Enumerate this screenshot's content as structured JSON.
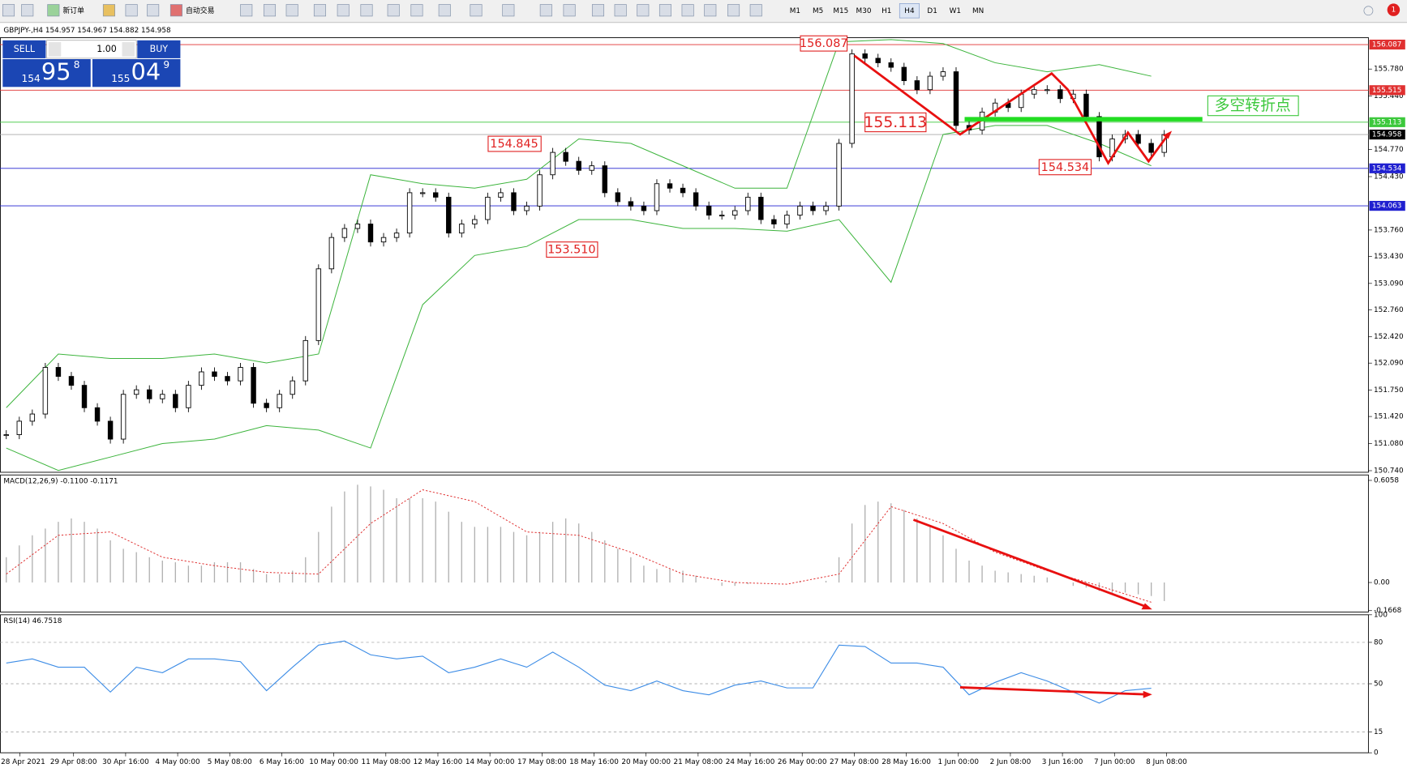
{
  "toolbar": {
    "new_order": "新订单",
    "auto_trading": "自动交易",
    "timeframes": [
      "M1",
      "M5",
      "M15",
      "M30",
      "H1",
      "H4",
      "D1",
      "W1",
      "MN"
    ],
    "badge": "1"
  },
  "main_chart": {
    "title": "GBPJPY-,H4  154.957 154.967 154.882 154.958",
    "ylim": [
      150.72,
      156.174
    ],
    "yticks": [
      {
        "value": 155.78,
        "label": "155.780"
      },
      {
        "value": 155.44,
        "label": "155.440"
      },
      {
        "value": 154.77,
        "label": "154.770"
      },
      {
        "value": 154.43,
        "label": "154.430"
      },
      {
        "value": 153.76,
        "label": "153.760"
      },
      {
        "value": 153.43,
        "label": "153.430"
      },
      {
        "value": 153.09,
        "label": "153.090"
      },
      {
        "value": 152.76,
        "label": "152.760"
      },
      {
        "value": 152.42,
        "label": "152.420"
      },
      {
        "value": 152.09,
        "label": "152.090"
      },
      {
        "value": 151.75,
        "label": "151.750"
      },
      {
        "value": 151.42,
        "label": "151.420"
      },
      {
        "value": 151.08,
        "label": "151.080"
      },
      {
        "value": 150.74,
        "label": "150.740"
      }
    ],
    "levels": [
      {
        "value": 156.087,
        "label": "156.087",
        "color": "#e03030"
      },
      {
        "value": 155.515,
        "label": "155.515",
        "color": "#e03030"
      },
      {
        "value": 155.113,
        "label": "155.113",
        "color": "#3cc83c"
      },
      {
        "value": 154.958,
        "label": "154.958",
        "color": "#000000"
      },
      {
        "value": 154.534,
        "label": "154.534",
        "color": "#2020d0"
      },
      {
        "value": 154.063,
        "label": "154.063",
        "color": "#2020d0"
      }
    ],
    "closes": [
      151.192,
      151.361,
      151.451,
      152.036,
      151.923,
      151.811,
      151.53,
      151.361,
      151.136,
      151.698,
      151.755,
      151.642,
      151.698,
      151.53,
      151.811,
      151.98,
      151.923,
      151.867,
      152.036,
      151.586,
      151.53,
      151.698,
      151.867,
      152.373,
      153.273,
      153.666,
      153.779,
      153.835,
      153.61,
      153.666,
      153.722,
      154.228,
      154.228,
      154.172,
      153.722,
      153.835,
      153.891,
      154.172,
      154.228,
      154.003,
      154.06,
      154.453,
      154.734,
      154.622,
      154.509,
      154.566,
      154.228,
      154.116,
      154.06,
      154.003,
      154.341,
      154.285,
      154.228,
      154.06,
      153.947,
      153.947,
      154.003,
      154.172,
      153.891,
      153.835,
      153.947,
      154.06,
      154.003,
      154.06,
      154.847,
      155.971,
      155.915,
      155.859,
      155.802,
      155.634,
      155.521,
      155.69,
      155.746,
      155.072,
      155.015,
      155.24,
      155.353,
      155.297,
      155.465,
      155.521,
      155.521,
      155.409,
      155.465,
      155.184,
      154.678,
      154.903,
      154.959,
      154.847,
      154.734,
      154.958
    ],
    "band_upper": [
      151.53,
      152.204,
      152.148,
      152.148,
      152.204,
      152.092,
      152.204,
      154.453,
      154.341,
      154.285,
      154.397,
      154.903,
      154.847,
      154.566,
      154.285,
      154.285,
      156.12,
      156.15,
      156.1,
      155.859,
      155.746,
      155.836,
      155.69
    ],
    "band_lower": [
      151.024,
      150.743,
      150.911,
      151.08,
      151.136,
      151.305,
      151.249,
      151.024,
      152.823,
      153.441,
      153.554,
      153.891,
      153.891,
      153.779,
      153.779,
      153.745,
      153.891,
      153.104,
      154.959,
      155.072,
      155.072,
      154.847,
      154.566
    ],
    "annotations": [
      {
        "text": "156.087"
      },
      {
        "text": "155.113"
      },
      {
        "text": "154.845"
      },
      {
        "text": "153.510"
      },
      {
        "text": "154.534"
      },
      {
        "text": "多空转折点"
      }
    ]
  },
  "trade_panel": {
    "sell": "SELL",
    "buy": "BUY",
    "lots": "1.00",
    "bid_big": "154",
    "bid_pips": "95",
    "bid_frac": "8",
    "ask_big": "155",
    "ask_pips": "04",
    "ask_frac": "9"
  },
  "macd": {
    "title": "MACD(12,26,9) -0.1100 -0.1171",
    "ylim": [
      -0.1754,
      0.638
    ],
    "yticks": [
      0.6058,
      {
        "value": 0,
        "label": "0.00"
      },
      -0.1668
    ],
    "histogram": [
      0.15,
      0.22,
      0.28,
      0.32,
      0.36,
      0.38,
      0.36,
      0.32,
      0.25,
      0.2,
      0.18,
      0.15,
      0.13,
      0.12,
      0.1,
      0.1,
      0.12,
      0.12,
      0.12,
      0.08,
      0.05,
      0.05,
      0.07,
      0.15,
      0.3,
      0.45,
      0.54,
      0.58,
      0.57,
      0.55,
      0.5,
      0.5,
      0.5,
      0.48,
      0.42,
      0.36,
      0.33,
      0.33,
      0.33,
      0.3,
      0.28,
      0.3,
      0.36,
      0.38,
      0.35,
      0.3,
      0.25,
      0.2,
      0.15,
      0.1,
      0.08,
      0.08,
      0.07,
      0.04,
      0.0,
      -0.02,
      -0.02,
      -0.01,
      0.0,
      0.0,
      0.0,
      0.01,
      0.0,
      0.01,
      0.15,
      0.35,
      0.46,
      0.48,
      0.47,
      0.43,
      0.38,
      0.33,
      0.28,
      0.2,
      0.13,
      0.1,
      0.07,
      0.06,
      0.05,
      0.04,
      0.03,
      0.0,
      -0.02,
      -0.03,
      -0.05,
      -0.06,
      -0.06,
      -0.07,
      -0.08,
      -0.11
    ],
    "signal": [
      0.05,
      0.28,
      0.3,
      0.15,
      0.1,
      0.06,
      0.05,
      0.35,
      0.55,
      0.48,
      0.3,
      0.28,
      0.18,
      0.05,
      0.0,
      -0.01,
      0.05,
      0.45,
      0.35,
      0.18,
      0.07,
      -0.02,
      -0.117
    ]
  },
  "rsi": {
    "title": "RSI(14) 46.7518",
    "ylim": [
      0,
      100
    ],
    "yticks": [
      100,
      80,
      50,
      15,
      0
    ],
    "grid_levels": [
      80,
      50,
      15
    ],
    "values": [
      65,
      68,
      62,
      62,
      44,
      62,
      58,
      68,
      68,
      66,
      45,
      62,
      78,
      81,
      71,
      68,
      70,
      58,
      62,
      68,
      62,
      73,
      62,
      49,
      45,
      52,
      45,
      42,
      49,
      52,
      47,
      47,
      78,
      77,
      65,
      65,
      62,
      42,
      51,
      58,
      52,
      44,
      36,
      45,
      46.75
    ]
  },
  "time_labels": [
    "28 Apr 2021",
    "29 Apr 08:00",
    "30 Apr 16:00",
    "4 May 00:00",
    "5 May 08:00",
    "6 May 16:00",
    "10 May 00:00",
    "11 May 08:00",
    "12 May 16:00",
    "14 May 00:00",
    "17 May 08:00",
    "18 May 16:00",
    "20 May 00:00",
    "21 May 08:00",
    "24 May 16:00",
    "26 May 00:00",
    "27 May 08:00",
    "28 May 16:00",
    "1 Jun 00:00",
    "2 Jun 08:00",
    "3 Jun 16:00",
    "7 Jun 00:00",
    "8 Jun 08:00"
  ]
}
